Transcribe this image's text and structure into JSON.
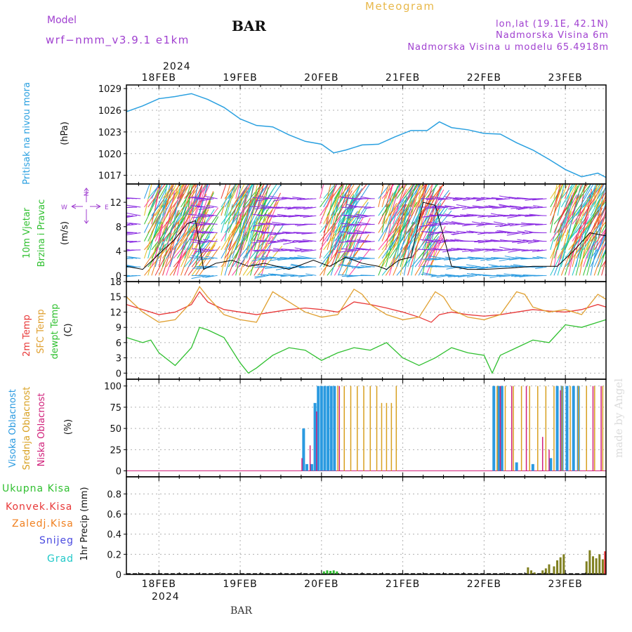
{
  "header": {
    "model_label": "Model",
    "model_name": "wrf−nmm_v3.9.1  e1km",
    "station": "BAR",
    "title": "Meteogram",
    "coords": "lon,lat (19.1E, 42.1N)",
    "elev": "Nadmorska Visina 6m",
    "elev_model": "Nadmorska Visina u modelu 65.4918m",
    "footer_station": "BAR",
    "watermark": "made by Angel"
  },
  "colors": {
    "purple": "#a040d0",
    "pressure": "#2aa0e0",
    "temp2m": "#e83838",
    "sfc": "#e0a030",
    "dewpt": "#30c030",
    "cloud_high": "#2a9ae0",
    "cloud_mid": "#d8a020",
    "cloud_low": "#d0207a",
    "precip_total": "#30b830",
    "precip_conv": "#e83030",
    "precip_frz": "#f08020",
    "precip_snow": "#4a4ae0",
    "precip_grad": "#20c8c8",
    "accum": "#808020",
    "grid": "#b0b0b0"
  },
  "time_axis": {
    "top_labels": [
      "18FEB",
      "19FEB",
      "20FEB",
      "21FEB",
      "22FEB",
      "23FEB"
    ],
    "bottom_labels": [
      "18FEB",
      "19FEB",
      "20FEB",
      "21FEB",
      "22FEB",
      "23FEB"
    ],
    "year": "2024",
    "start_day": 17.6,
    "end_day": 23.5
  },
  "chart_data": [
    {
      "type": "line",
      "panel": "pressure",
      "ylabels": [
        "Pritisak na nivou mora",
        "(hPa)"
      ],
      "yticks": [
        "1029",
        "1026",
        "1023",
        "1020",
        "1017"
      ],
      "ylim": [
        1015.8,
        1029.5
      ],
      "grid": true,
      "series": [
        {
          "x": [
            17.6,
            17.8,
            18.0,
            18.2,
            18.4,
            18.6,
            18.8,
            19.0,
            19.2,
            19.4,
            19.6,
            19.8,
            20.0,
            20.15,
            20.3,
            20.5,
            20.7,
            20.9,
            21.1,
            21.3,
            21.45,
            21.6,
            21.8,
            22.0,
            22.2,
            22.4,
            22.6,
            22.8,
            23.0,
            23.2,
            23.4,
            23.5
          ],
          "y": [
            1025.8,
            1026.6,
            1027.6,
            1027.9,
            1028.3,
            1027.5,
            1026.4,
            1024.8,
            1023.9,
            1023.7,
            1022.6,
            1021.7,
            1021.3,
            1020.1,
            1020.5,
            1021.2,
            1021.3,
            1022.3,
            1023.2,
            1023.2,
            1024.4,
            1023.6,
            1023.3,
            1022.8,
            1022.7,
            1021.5,
            1020.5,
            1019.2,
            1017.8,
            1016.8,
            1017.3,
            1016.7
          ]
        }
      ]
    },
    {
      "type": "line",
      "panel": "wind",
      "ylabels": [
        "10m Vjetar",
        "Brzina i Pravac",
        "(m/s)"
      ],
      "compass": "N",
      "yticks": [
        "12",
        "8",
        "4",
        "0"
      ],
      "ylim": [
        -1,
        15
      ],
      "grid": false,
      "series": [
        {
          "name": "speed",
          "x": [
            17.6,
            17.8,
            18.0,
            18.2,
            18.35,
            18.45,
            18.55,
            18.7,
            18.9,
            19.1,
            19.3,
            19.6,
            19.9,
            20.1,
            20.3,
            20.5,
            20.7,
            20.8,
            20.95,
            21.1,
            21.25,
            21.4,
            21.6,
            21.8,
            22.0,
            22.3,
            22.6,
            22.9,
            23.1,
            23.3,
            23.5
          ],
          "y": [
            1.5,
            1.0,
            3.5,
            6.0,
            8.5,
            9.0,
            1.0,
            2.0,
            2.5,
            1.5,
            2.0,
            1.0,
            2.5,
            1.5,
            3.0,
            2.0,
            1.5,
            1.0,
            2.5,
            3.0,
            12.0,
            11.5,
            1.5,
            1.0,
            1.0,
            1.2,
            1.5,
            1.5,
            4.0,
            7.0,
            6.5
          ]
        }
      ]
    },
    {
      "type": "line",
      "panel": "temperature",
      "ylabels": [
        "2m Temp",
        "SFC Temp",
        "dewpt Temp",
        "(C)"
      ],
      "yticks": [
        "18",
        "15",
        "12",
        "9",
        "6",
        "3",
        "0"
      ],
      "ylim": [
        -1.2,
        18
      ],
      "grid": true,
      "series": [
        {
          "name": "2m Temp",
          "x": [
            17.6,
            17.8,
            18.0,
            18.2,
            18.4,
            18.5,
            18.6,
            18.8,
            19.0,
            19.2,
            19.4,
            19.6,
            19.8,
            20.0,
            20.2,
            20.4,
            20.6,
            20.8,
            21.0,
            21.2,
            21.35,
            21.45,
            21.6,
            21.8,
            22.0,
            22.2,
            22.4,
            22.6,
            22.8,
            23.0,
            23.2,
            23.4,
            23.5
          ],
          "y": [
            13.5,
            12.5,
            11.5,
            12.0,
            13.5,
            16.0,
            14.0,
            12.5,
            12.0,
            11.5,
            12.0,
            12.5,
            12.8,
            12.5,
            12.0,
            14.0,
            13.5,
            12.8,
            12.0,
            11.0,
            10.0,
            11.5,
            12.0,
            11.5,
            11.2,
            11.5,
            12.0,
            12.5,
            12.2,
            12.0,
            12.5,
            13.5,
            13.0
          ]
        },
        {
          "name": "SFC Temp",
          "x": [
            17.6,
            17.8,
            18.0,
            18.2,
            18.4,
            18.5,
            18.6,
            18.8,
            19.0,
            19.2,
            19.4,
            19.6,
            19.8,
            20.0,
            20.2,
            20.4,
            20.5,
            20.6,
            20.8,
            21.0,
            21.2,
            21.4,
            21.5,
            21.6,
            21.8,
            22.0,
            22.2,
            22.4,
            22.5,
            22.6,
            22.8,
            23.0,
            23.2,
            23.4,
            23.5
          ],
          "y": [
            15.0,
            12.0,
            10.0,
            10.5,
            14.0,
            17.0,
            15.0,
            11.5,
            10.5,
            10.0,
            16.0,
            14.0,
            12.0,
            11.0,
            11.5,
            16.5,
            15.5,
            13.5,
            11.5,
            10.5,
            11.0,
            16.0,
            15.0,
            12.5,
            11.0,
            10.5,
            11.5,
            16.0,
            15.5,
            13.0,
            12.0,
            12.5,
            11.5,
            15.5,
            14.5
          ]
        },
        {
          "name": "dewpt Temp",
          "x": [
            17.6,
            17.8,
            17.9,
            18.0,
            18.2,
            18.4,
            18.5,
            18.6,
            18.8,
            19.0,
            19.1,
            19.2,
            19.4,
            19.6,
            19.8,
            20.0,
            20.2,
            20.4,
            20.6,
            20.8,
            21.0,
            21.2,
            21.4,
            21.6,
            21.8,
            22.0,
            22.1,
            22.2,
            22.4,
            22.6,
            22.8,
            23.0,
            23.2,
            23.4,
            23.5
          ],
          "y": [
            7.0,
            6.0,
            6.5,
            4.0,
            1.5,
            5.0,
            9.0,
            8.5,
            7.0,
            2.0,
            0.0,
            1.0,
            3.5,
            5.0,
            4.5,
            2.5,
            4.0,
            5.0,
            4.5,
            6.0,
            3.0,
            1.5,
            3.0,
            5.0,
            4.0,
            3.5,
            0.0,
            3.5,
            5.0,
            6.5,
            6.0,
            9.5,
            9.0,
            10.0,
            10.5
          ]
        }
      ]
    },
    {
      "type": "bar",
      "panel": "clouds",
      "ylabels": [
        "Visoka Oblacnost",
        "Srednja Oblacnost",
        "Niska Oblacnost",
        "(%)"
      ],
      "yticks": [
        "100",
        "75",
        "50",
        "25",
        "0"
      ],
      "ylim": [
        -7,
        108
      ],
      "grid": true,
      "series": [
        {
          "name": "Visoka Oblacnost",
          "x": [
            19.78,
            19.82,
            19.88,
            19.92,
            19.96,
            20.0,
            20.04,
            20.08,
            20.12,
            20.16,
            22.12,
            22.18,
            22.22,
            22.4,
            22.6,
            22.82,
            22.9,
            22.96,
            23.02,
            23.1,
            23.16
          ],
          "y": [
            50,
            8,
            8,
            80,
            100,
            100,
            100,
            100,
            100,
            100,
            100,
            100,
            100,
            10,
            8,
            15,
            100,
            100,
            100,
            100,
            100
          ]
        },
        {
          "name": "Srednja Oblacnost",
          "x": [
            20.2,
            20.28,
            20.36,
            20.44,
            20.52,
            20.6,
            20.68,
            20.74,
            20.8,
            20.86,
            20.92,
            22.16,
            22.26,
            22.36,
            22.46,
            22.56,
            22.66,
            22.76,
            22.86,
            22.96,
            23.06,
            23.16,
            23.26,
            23.36,
            23.46
          ],
          "y": [
            100,
            100,
            100,
            100,
            100,
            100,
            100,
            80,
            80,
            80,
            100,
            100,
            100,
            100,
            100,
            100,
            100,
            100,
            100,
            100,
            100,
            100,
            100,
            100,
            100
          ]
        },
        {
          "name": "Niska Oblacnost",
          "x": [
            19.76,
            19.86,
            19.94,
            20.22,
            22.2,
            22.34,
            22.52,
            22.72,
            22.8,
            22.94,
            23.34,
            23.44
          ],
          "y": [
            15,
            30,
            70,
            100,
            100,
            100,
            100,
            40,
            25,
            95,
            100,
            100
          ]
        }
      ]
    },
    {
      "type": "bar",
      "panel": "precip",
      "ylabels": [
        "1hr Precip (mm)"
      ],
      "legend": [
        "Ukupna Kisa",
        "Konvek.Kisa",
        "Zaledj.Kisa",
        "Snijeg",
        "Grad"
      ],
      "yticks": [
        "0.8",
        "0.6",
        "0.4",
        "0.2",
        "0"
      ],
      "ylim": [
        0,
        0.97
      ],
      "grid": true,
      "series": [
        {
          "name": "Ukupna Kisa",
          "x": [
            20.03,
            20.07,
            20.11,
            20.15,
            20.19
          ],
          "y": [
            0.03,
            0.04,
            0.035,
            0.04,
            0.03
          ]
        },
        {
          "name": "accum",
          "x": [
            22.54,
            22.58,
            22.62,
            22.72,
            22.76,
            22.8,
            22.86,
            22.9,
            22.94,
            22.98,
            23.26,
            23.3,
            23.34,
            23.38,
            23.42,
            23.46
          ],
          "y": [
            0.07,
            0.04,
            0.02,
            0.04,
            0.06,
            0.1,
            0.08,
            0.14,
            0.17,
            0.2,
            0.13,
            0.24,
            0.18,
            0.16,
            0.2,
            0.15
          ]
        },
        {
          "name": "Konvek.Kisa",
          "x": [
            23.49
          ],
          "y": [
            0.23
          ]
        }
      ]
    }
  ]
}
